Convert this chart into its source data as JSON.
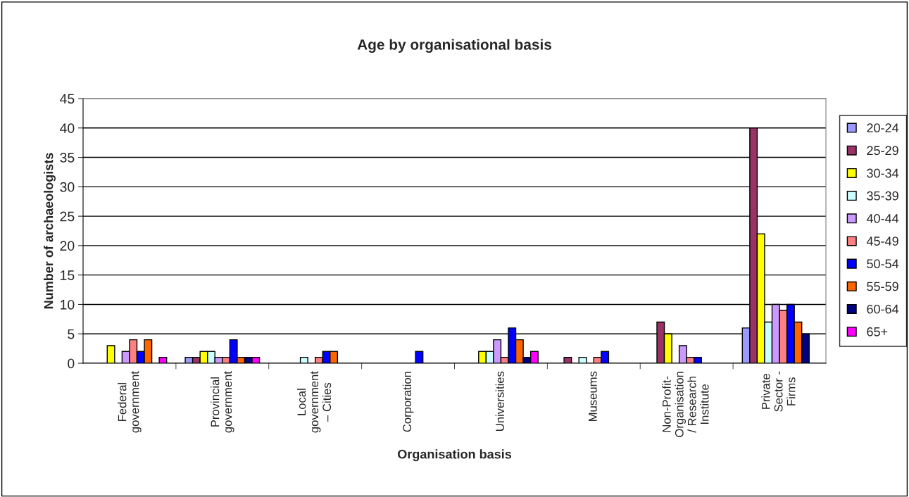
{
  "chart_data": {
    "type": "bar",
    "title": "Age by organisational basis",
    "xlabel": "Organisation basis",
    "ylabel": "Number of archaeologists",
    "categories": [
      "Federal\ngovernment",
      "Provincial\ngovernment",
      "Local\ngovernment\n– Cities",
      "Corporation",
      "Universities",
      "Museums",
      "Non-Profit-\nOrganisation\n/ Research\nInstitute",
      "Private\nSector -\nFirms"
    ],
    "series": [
      {
        "name": "20-24",
        "color": "#9999ff",
        "values": [
          null,
          1,
          null,
          null,
          null,
          null,
          null,
          6
        ]
      },
      {
        "name": "25-29",
        "color": "#993366",
        "values": [
          null,
          1,
          null,
          null,
          null,
          1,
          7,
          40
        ]
      },
      {
        "name": "30-34",
        "color": "#ffff00",
        "values": [
          3,
          2,
          null,
          null,
          2,
          null,
          5,
          22
        ]
      },
      {
        "name": "35-39",
        "color": "#ccffff",
        "values": [
          null,
          2,
          1,
          null,
          2,
          1,
          null,
          7
        ]
      },
      {
        "name": "40-44",
        "color": "#cc99ff",
        "values": [
          2,
          1,
          null,
          null,
          4,
          null,
          3,
          10
        ]
      },
      {
        "name": "45-49",
        "color": "#ff8080",
        "values": [
          4,
          1,
          1,
          null,
          1,
          1,
          1,
          9
        ]
      },
      {
        "name": "50-54",
        "color": "#0000ff",
        "values": [
          2,
          4,
          2,
          2,
          6,
          2,
          1,
          10
        ]
      },
      {
        "name": "55-59",
        "color": "#ff6600",
        "values": [
          4,
          1,
          2,
          null,
          4,
          null,
          null,
          7
        ]
      },
      {
        "name": "60-64",
        "color": "#000080",
        "values": [
          null,
          1,
          null,
          null,
          1,
          null,
          null,
          5
        ]
      },
      {
        "name": "65+",
        "color": "#ff00ff",
        "values": [
          1,
          1,
          null,
          null,
          2,
          null,
          null,
          null
        ]
      }
    ],
    "ylim": [
      0,
      45
    ],
    "yticks": [
      0,
      5,
      10,
      15,
      20,
      25,
      30,
      35,
      40,
      45
    ],
    "grid": "y",
    "legend": "right"
  }
}
